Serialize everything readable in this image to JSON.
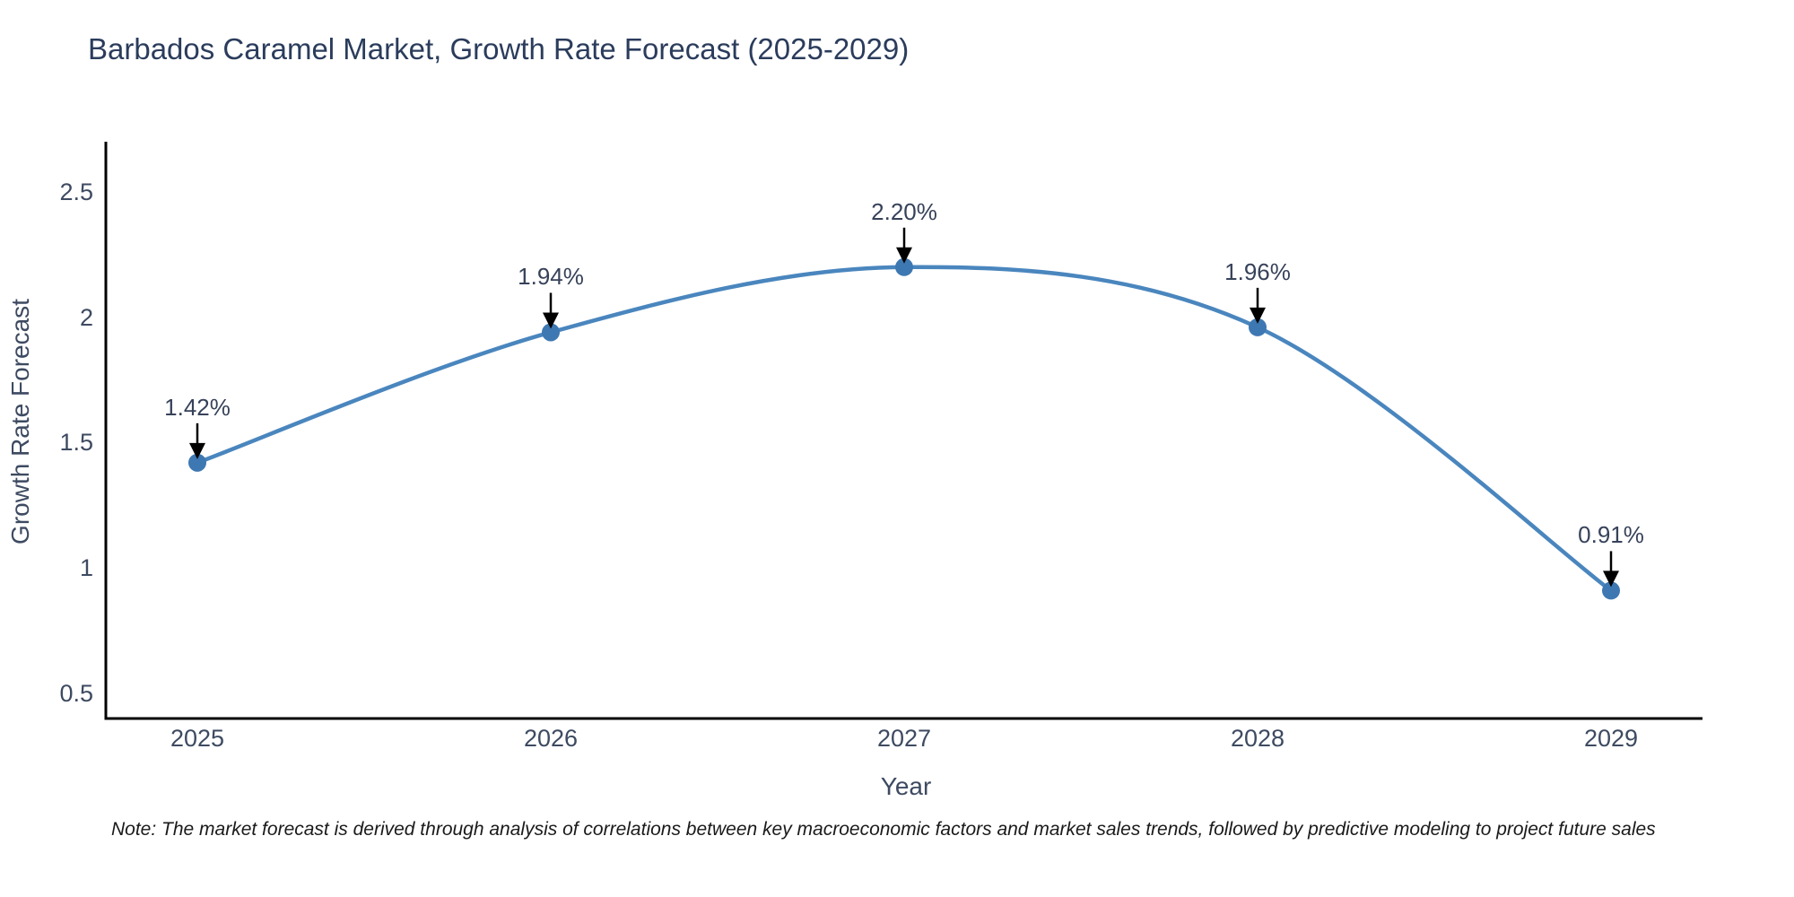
{
  "title": "Barbados Caramel Market, Growth Rate Forecast (2025-2029)",
  "note": "Note: The market forecast is derived through analysis of correlations between key macroeconomic factors and market sales trends, followed by predictive modeling to project future sales",
  "chart_data": {
    "type": "line",
    "title": "Barbados Caramel Market, Growth Rate Forecast (2025-2029)",
    "xlabel": "Year",
    "ylabel": "Growth Rate Forecast",
    "categories": [
      "2025",
      "2026",
      "2027",
      "2028",
      "2029"
    ],
    "values": [
      1.42,
      1.94,
      2.2,
      1.96,
      0.91
    ],
    "point_labels": [
      "1.42%",
      "1.94%",
      "2.20%",
      "1.96%",
      "0.91%"
    ],
    "series": [
      {
        "name": "Growth Rate Forecast",
        "values": [
          1.42,
          1.94,
          2.2,
          1.96,
          0.91
        ]
      }
    ],
    "yticks": {
      "values": [
        0.5,
        1,
        1.5,
        2,
        2.5
      ],
      "labels": [
        "0.5",
        "1",
        "1.5",
        "2",
        "2.5"
      ]
    },
    "ylim": [
      0.4,
      2.7
    ],
    "grid": false,
    "legend": "none",
    "line_shape": "spline",
    "annotation_style": "value label with down arrow to marker",
    "colors": {
      "line": "#4a86be",
      "marker": "#3e78b2",
      "arrow": "#000000",
      "axis_line": "#000000",
      "title_text": "#2b3c5c",
      "axis_text": "#3d4a61",
      "note_text": "#1a1a1a"
    }
  }
}
